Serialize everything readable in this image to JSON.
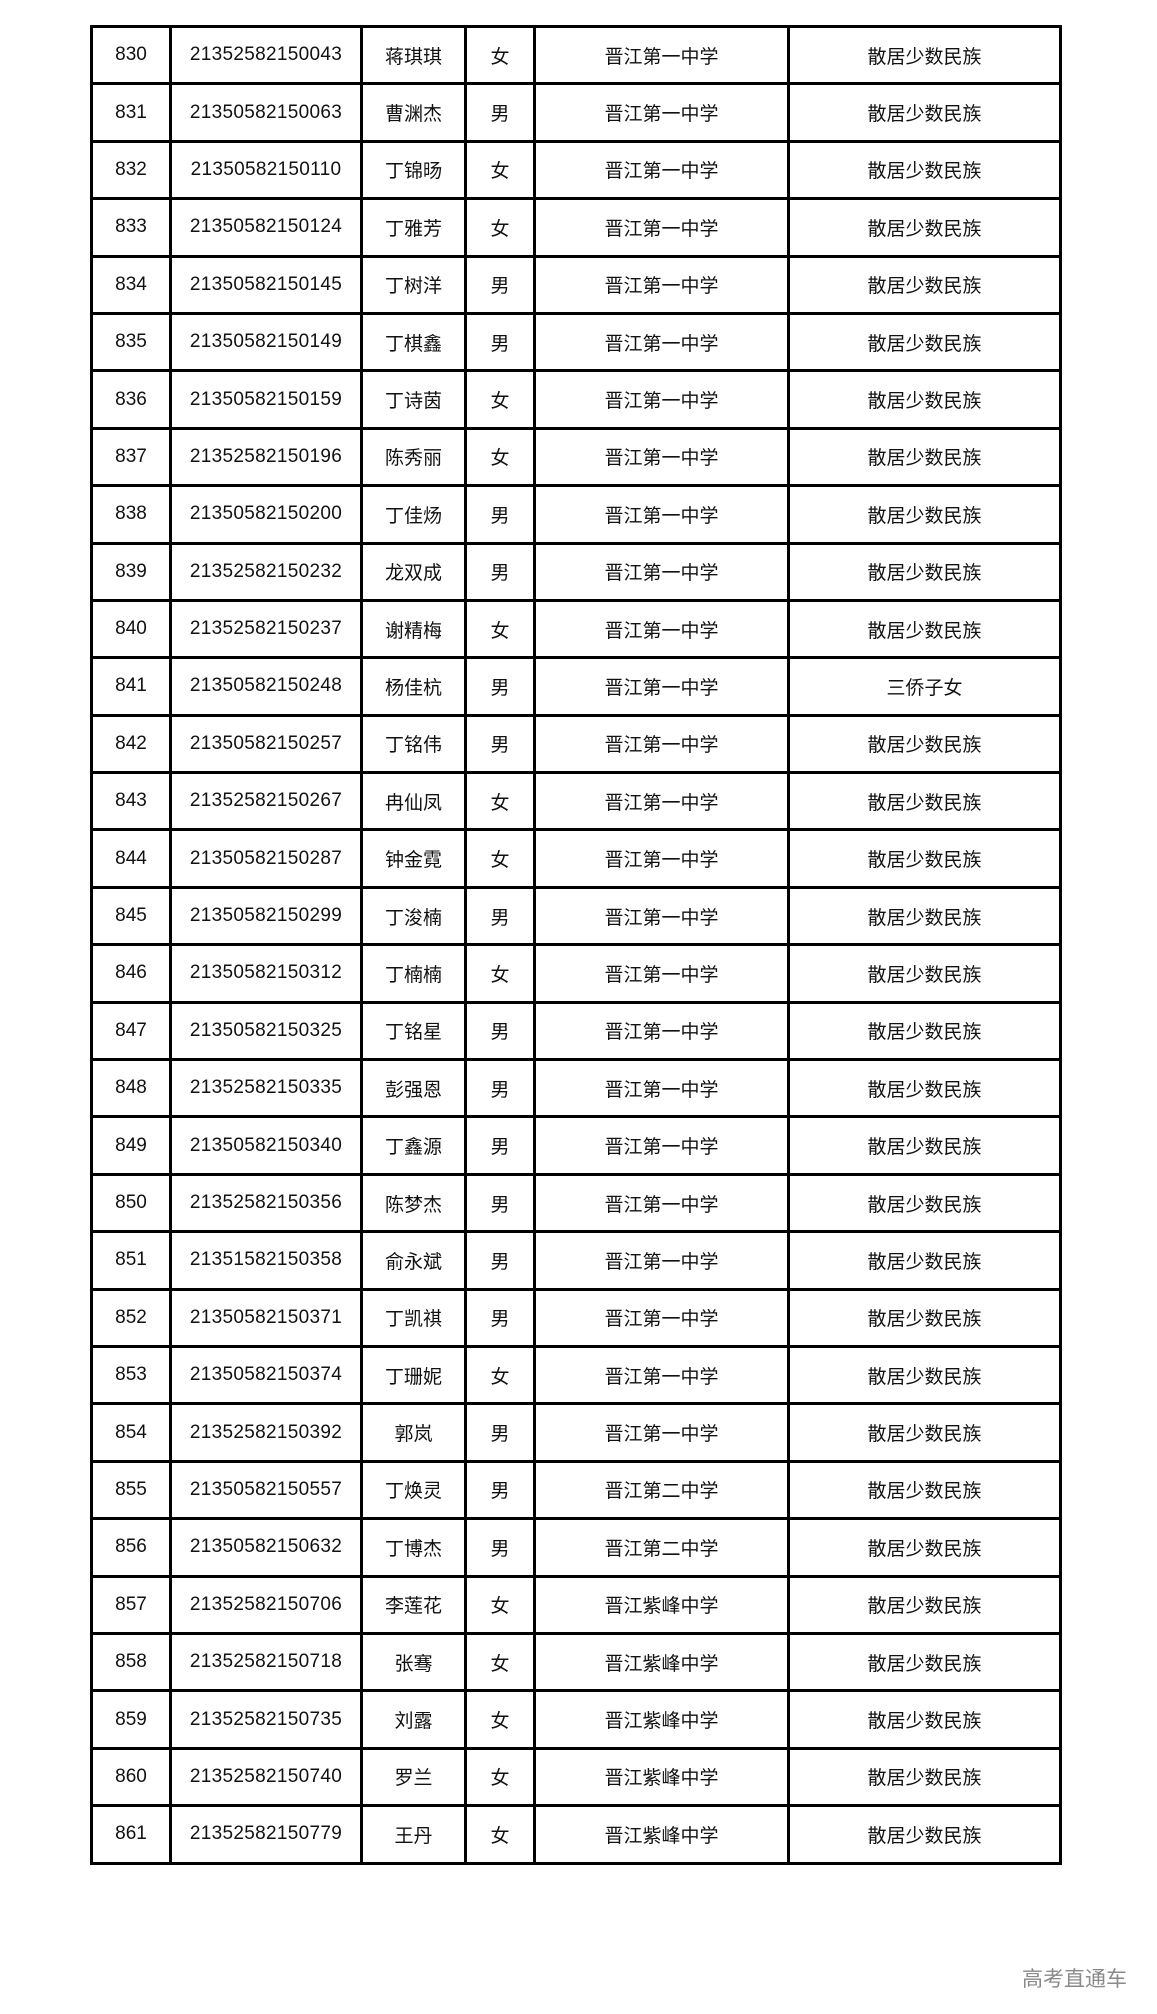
{
  "rows": [
    [
      "830",
      "21352582150043",
      "蒋琪琪",
      "女",
      "晋江第一中学",
      "散居少数民族"
    ],
    [
      "831",
      "21350582150063",
      "曹渊杰",
      "男",
      "晋江第一中学",
      "散居少数民族"
    ],
    [
      "832",
      "21350582150110",
      "丁锦旸",
      "女",
      "晋江第一中学",
      "散居少数民族"
    ],
    [
      "833",
      "21350582150124",
      "丁雅芳",
      "女",
      "晋江第一中学",
      "散居少数民族"
    ],
    [
      "834",
      "21350582150145",
      "丁树洋",
      "男",
      "晋江第一中学",
      "散居少数民族"
    ],
    [
      "835",
      "21350582150149",
      "丁棋鑫",
      "男",
      "晋江第一中学",
      "散居少数民族"
    ],
    [
      "836",
      "21350582150159",
      "丁诗茵",
      "女",
      "晋江第一中学",
      "散居少数民族"
    ],
    [
      "837",
      "21352582150196",
      "陈秀丽",
      "女",
      "晋江第一中学",
      "散居少数民族"
    ],
    [
      "838",
      "21350582150200",
      "丁佳炀",
      "男",
      "晋江第一中学",
      "散居少数民族"
    ],
    [
      "839",
      "21352582150232",
      "龙双成",
      "男",
      "晋江第一中学",
      "散居少数民族"
    ],
    [
      "840",
      "21352582150237",
      "谢精梅",
      "女",
      "晋江第一中学",
      "散居少数民族"
    ],
    [
      "841",
      "21350582150248",
      "杨佳杭",
      "男",
      "晋江第一中学",
      "三侨子女"
    ],
    [
      "842",
      "21350582150257",
      "丁铭伟",
      "男",
      "晋江第一中学",
      "散居少数民族"
    ],
    [
      "843",
      "21352582150267",
      "冉仙凤",
      "女",
      "晋江第一中学",
      "散居少数民族"
    ],
    [
      "844",
      "21350582150287",
      "钟金霓",
      "女",
      "晋江第一中学",
      "散居少数民族"
    ],
    [
      "845",
      "21350582150299",
      "丁浚楠",
      "男",
      "晋江第一中学",
      "散居少数民族"
    ],
    [
      "846",
      "21350582150312",
      "丁楠楠",
      "女",
      "晋江第一中学",
      "散居少数民族"
    ],
    [
      "847",
      "21350582150325",
      "丁铭星",
      "男",
      "晋江第一中学",
      "散居少数民族"
    ],
    [
      "848",
      "21352582150335",
      "彭强恩",
      "男",
      "晋江第一中学",
      "散居少数民族"
    ],
    [
      "849",
      "21350582150340",
      "丁鑫源",
      "男",
      "晋江第一中学",
      "散居少数民族"
    ],
    [
      "850",
      "21352582150356",
      "陈梦杰",
      "男",
      "晋江第一中学",
      "散居少数民族"
    ],
    [
      "851",
      "21351582150358",
      "俞永斌",
      "男",
      "晋江第一中学",
      "散居少数民族"
    ],
    [
      "852",
      "21350582150371",
      "丁凯祺",
      "男",
      "晋江第一中学",
      "散居少数民族"
    ],
    [
      "853",
      "21350582150374",
      "丁珊妮",
      "女",
      "晋江第一中学",
      "散居少数民族"
    ],
    [
      "854",
      "21352582150392",
      "郭岚",
      "男",
      "晋江第一中学",
      "散居少数民族"
    ],
    [
      "855",
      "21350582150557",
      "丁焕灵",
      "男",
      "晋江第二中学",
      "散居少数民族"
    ],
    [
      "856",
      "21350582150632",
      "丁博杰",
      "男",
      "晋江第二中学",
      "散居少数民族"
    ],
    [
      "857",
      "21352582150706",
      "李莲花",
      "女",
      "晋江紫峰中学",
      "散居少数民族"
    ],
    [
      "858",
      "21352582150718",
      "张骞",
      "女",
      "晋江紫峰中学",
      "散居少数民族"
    ],
    [
      "859",
      "21352582150735",
      "刘露",
      "女",
      "晋江紫峰中学",
      "散居少数民族"
    ],
    [
      "860",
      "21352582150740",
      "罗兰",
      "女",
      "晋江紫峰中学",
      "散居少数民族"
    ],
    [
      "861",
      "21352582150779",
      "王丹",
      "女",
      "晋江紫峰中学",
      "散居少数民族"
    ]
  ],
  "watermark": "高考直通车"
}
